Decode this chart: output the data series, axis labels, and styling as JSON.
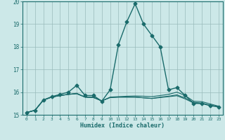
{
  "xlabel": "Humidex (Indice chaleur)",
  "xlim": [
    -0.5,
    23.5
  ],
  "ylim": [
    15,
    20
  ],
  "yticks": [
    15,
    16,
    17,
    18,
    19,
    20
  ],
  "xticks": [
    0,
    1,
    2,
    3,
    4,
    5,
    6,
    7,
    8,
    9,
    10,
    11,
    12,
    13,
    14,
    15,
    16,
    17,
    18,
    19,
    20,
    21,
    22,
    23
  ],
  "bg_color": "#cce8e8",
  "grid_color": "#99bbbb",
  "line_color": "#1a6b6b",
  "lines": [
    {
      "x": [
        0,
        1,
        2,
        3,
        4,
        5,
        6,
        7,
        8,
        9,
        10,
        11,
        12,
        13,
        14,
        15,
        16,
        17,
        18,
        19,
        20,
        21,
        22,
        23
      ],
      "y": [
        15.1,
        15.2,
        15.65,
        15.8,
        15.9,
        16.0,
        16.3,
        15.85,
        15.85,
        15.6,
        16.1,
        18.1,
        19.1,
        19.9,
        19.0,
        18.5,
        18.0,
        16.1,
        16.2,
        15.85,
        15.5,
        15.5,
        15.4,
        15.35
      ],
      "marker": "D",
      "markersize": 2.5,
      "lw": 1.0
    },
    {
      "x": [
        0,
        1,
        2,
        3,
        4,
        5,
        6,
        7,
        8,
        9,
        10,
        11,
        12,
        13,
        14,
        15,
        16,
        17,
        18,
        19,
        20,
        21,
        22,
        23
      ],
      "y": [
        15.1,
        15.2,
        15.65,
        15.78,
        15.85,
        15.9,
        15.95,
        15.78,
        15.78,
        15.6,
        15.78,
        15.8,
        15.82,
        15.83,
        15.82,
        15.8,
        15.85,
        15.9,
        16.0,
        15.85,
        15.6,
        15.58,
        15.48,
        15.38
      ],
      "marker": null,
      "markersize": 0,
      "lw": 0.8
    },
    {
      "x": [
        0,
        1,
        2,
        3,
        4,
        5,
        6,
        7,
        8,
        9,
        10,
        11,
        12,
        13,
        14,
        15,
        16,
        17,
        18,
        19,
        20,
        21,
        22,
        23
      ],
      "y": [
        15.1,
        15.2,
        15.65,
        15.78,
        15.85,
        15.9,
        15.93,
        15.78,
        15.76,
        15.62,
        15.76,
        15.78,
        15.78,
        15.78,
        15.75,
        15.72,
        15.78,
        15.82,
        15.88,
        15.74,
        15.55,
        15.52,
        15.42,
        15.36
      ],
      "marker": null,
      "markersize": 0,
      "lw": 0.8
    },
    {
      "x": [
        0,
        1,
        2,
        3,
        4,
        5,
        6,
        7,
        8,
        9,
        10,
        11,
        12,
        13,
        14,
        15,
        16,
        17,
        18,
        19,
        20,
        21,
        22,
        23
      ],
      "y": [
        15.1,
        15.2,
        15.65,
        15.78,
        15.85,
        15.9,
        15.93,
        15.78,
        15.76,
        15.62,
        15.76,
        15.78,
        15.78,
        15.78,
        15.75,
        15.72,
        15.76,
        15.8,
        15.84,
        15.7,
        15.52,
        15.5,
        15.42,
        15.36
      ],
      "marker": null,
      "markersize": 0,
      "lw": 0.8
    }
  ]
}
